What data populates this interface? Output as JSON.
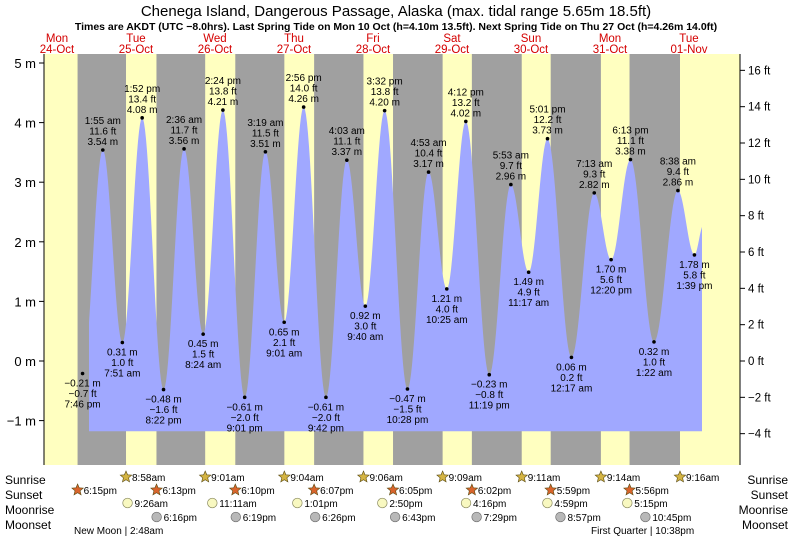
{
  "chart_data": {
    "type": "area",
    "title": "Chenega Island, Dangerous Passage, Alaska (max. tidal range 5.65m 18.5ft)",
    "subtitle": "Times are AKDT (UTC −8.0hrs). Last Spring Tide on Mon 10 Oct (h=4.10m 13.5ft). Next Spring Tide on Thu 27 Oct (h=4.26m 14.0ft)",
    "ylim_m": [
      -1.2,
      5.0
    ],
    "y_ticks_m": [
      {
        "v": 5,
        "label": "5 m"
      },
      {
        "v": 4,
        "label": "4 m"
      },
      {
        "v": 3,
        "label": "3 m"
      },
      {
        "v": 2,
        "label": "2 m"
      },
      {
        "v": 1,
        "label": "1 m"
      },
      {
        "v": 0,
        "label": "0 m"
      },
      {
        "v": -1,
        "label": "−1 m"
      }
    ],
    "y_ticks_ft": [
      {
        "v": 16,
        "label": "16 ft"
      },
      {
        "v": 14,
        "label": "14 ft"
      },
      {
        "v": 12,
        "label": "12 ft"
      },
      {
        "v": 10,
        "label": "10 ft"
      },
      {
        "v": 8,
        "label": "8 ft"
      },
      {
        "v": 6,
        "label": "6 ft"
      },
      {
        "v": 4,
        "label": "4 ft"
      },
      {
        "v": 2,
        "label": "2 ft"
      },
      {
        "v": 0,
        "label": "0 ft"
      },
      {
        "v": -2,
        "label": "−2 ft"
      },
      {
        "v": -4,
        "label": "−4 ft"
      }
    ],
    "days": [
      {
        "dow": "Mon",
        "date": "24-Oct"
      },
      {
        "dow": "Tue",
        "date": "25-Oct"
      },
      {
        "dow": "Wed",
        "date": "26-Oct"
      },
      {
        "dow": "Thu",
        "date": "27-Oct"
      },
      {
        "dow": "Fri",
        "date": "28-Oct"
      },
      {
        "dow": "Sat",
        "date": "29-Oct"
      },
      {
        "dow": "Sun",
        "date": "30-Oct"
      },
      {
        "dow": "Mon",
        "date": "31-Oct"
      },
      {
        "dow": "Tue",
        "date": "01-Nov"
      }
    ],
    "daylight_hours": [
      {
        "day": 0,
        "rise": null,
        "set": 18.25
      },
      {
        "day": 1,
        "rise": 8.967,
        "set": 18.217
      },
      {
        "day": 2,
        "rise": 9.017,
        "set": 18.167
      },
      {
        "day": 3,
        "rise": 9.067,
        "set": 18.117
      },
      {
        "day": 4,
        "rise": 9.1,
        "set": 18.083
      },
      {
        "day": 5,
        "rise": 9.15,
        "set": 18.033
      },
      {
        "day": 6,
        "rise": 9.183,
        "set": 17.983
      },
      {
        "day": 7,
        "rise": 9.233,
        "set": 17.933
      },
      {
        "day": 8,
        "rise": 9.267,
        "set": null
      }
    ],
    "tides": [
      {
        "day": 0,
        "hour": 19.767,
        "m": -0.21,
        "m_label": "−0.21 m",
        "ft_label": "−0.7 ft",
        "time": "7:46 pm",
        "type": "low"
      },
      {
        "day": 1,
        "hour": 1.917,
        "m": 3.54,
        "m_label": "3.54 m",
        "ft_label": "11.6 ft",
        "time": "1:55 am",
        "type": "high"
      },
      {
        "day": 1,
        "hour": 7.85,
        "m": 0.31,
        "m_label": "0.31 m",
        "ft_label": "1.0 ft",
        "time": "7:51 am",
        "type": "low"
      },
      {
        "day": 1,
        "hour": 13.867,
        "m": 4.08,
        "m_label": "4.08 m",
        "ft_label": "13.4 ft",
        "time": "1:52 pm",
        "type": "high"
      },
      {
        "day": 1,
        "hour": 20.367,
        "m": -0.48,
        "m_label": "−0.48 m",
        "ft_label": "−1.6 ft",
        "time": "8:22 pm",
        "type": "low"
      },
      {
        "day": 2,
        "hour": 2.6,
        "m": 3.56,
        "m_label": "3.56 m",
        "ft_label": "11.7 ft",
        "time": "2:36 am",
        "type": "high"
      },
      {
        "day": 2,
        "hour": 8.4,
        "m": 0.45,
        "m_label": "0.45 m",
        "ft_label": "1.5 ft",
        "time": "8:24 am",
        "type": "low"
      },
      {
        "day": 2,
        "hour": 14.4,
        "m": 4.21,
        "m_label": "4.21 m",
        "ft_label": "13.8 ft",
        "time": "2:24 pm",
        "type": "high"
      },
      {
        "day": 2,
        "hour": 21.017,
        "m": -0.61,
        "m_label": "−0.61 m",
        "ft_label": "−2.0 ft",
        "time": "9:01 pm",
        "type": "low"
      },
      {
        "day": 3,
        "hour": 3.317,
        "m": 3.51,
        "m_label": "3.51 m",
        "ft_label": "11.5 ft",
        "time": "3:19 am",
        "type": "high"
      },
      {
        "day": 3,
        "hour": 9.017,
        "m": 0.65,
        "m_label": "0.65 m",
        "ft_label": "2.1 ft",
        "time": "9:01 am",
        "type": "low"
      },
      {
        "day": 3,
        "hour": 14.933,
        "m": 4.26,
        "m_label": "4.26 m",
        "ft_label": "14.0 ft",
        "time": "2:56 pm",
        "type": "high"
      },
      {
        "day": 3,
        "hour": 21.7,
        "m": -0.61,
        "m_label": "−0.61 m",
        "ft_label": "−2.0 ft",
        "time": "9:42 pm",
        "type": "low"
      },
      {
        "day": 4,
        "hour": 4.05,
        "m": 3.37,
        "m_label": "3.37 m",
        "ft_label": "11.1 ft",
        "time": "4:03 am",
        "type": "high"
      },
      {
        "day": 4,
        "hour": 9.667,
        "m": 0.92,
        "m_label": "0.92 m",
        "ft_label": "3.0 ft",
        "time": "9:40 am",
        "type": "low"
      },
      {
        "day": 4,
        "hour": 15.533,
        "m": 4.2,
        "m_label": "4.20 m",
        "ft_label": "13.8 ft",
        "time": "3:32 pm",
        "type": "high"
      },
      {
        "day": 4,
        "hour": 22.467,
        "m": -0.47,
        "m_label": "−0.47 m",
        "ft_label": "−1.5 ft",
        "time": "10:28 pm",
        "type": "low"
      },
      {
        "day": 5,
        "hour": 4.883,
        "m": 3.17,
        "m_label": "3.17 m",
        "ft_label": "10.4 ft",
        "time": "4:53 am",
        "type": "high"
      },
      {
        "day": 5,
        "hour": 10.417,
        "m": 1.21,
        "m_label": "1.21 m",
        "ft_label": "4.0 ft",
        "time": "10:25 am",
        "type": "low"
      },
      {
        "day": 5,
        "hour": 16.2,
        "m": 4.02,
        "m_label": "4.02 m",
        "ft_label": "13.2 ft",
        "time": "4:12 pm",
        "type": "high"
      },
      {
        "day": 5,
        "hour": 23.317,
        "m": -0.23,
        "m_label": "−0.23 m",
        "ft_label": "−0.8 ft",
        "time": "11:19 pm",
        "type": "low"
      },
      {
        "day": 6,
        "hour": 5.883,
        "m": 2.96,
        "m_label": "2.96 m",
        "ft_label": "9.7 ft",
        "time": "5:53 am",
        "type": "high"
      },
      {
        "day": 6,
        "hour": 11.283,
        "m": 1.49,
        "m_label": "1.49 m",
        "ft_label": "4.9 ft",
        "time": "11:17 am",
        "type": "low"
      },
      {
        "day": 6,
        "hour": 17.017,
        "m": 3.73,
        "m_label": "3.73 m",
        "ft_label": "12.2 ft",
        "time": "5:01 pm",
        "type": "high"
      },
      {
        "day": 7,
        "hour": 0.283,
        "m": 0.06,
        "m_label": "0.06 m",
        "ft_label": "0.2 ft",
        "time": "12:17 am",
        "type": "low"
      },
      {
        "day": 7,
        "hour": 7.217,
        "m": 2.82,
        "m_label": "2.82 m",
        "ft_label": "9.3 ft",
        "time": "7:13 am",
        "type": "high"
      },
      {
        "day": 7,
        "hour": 12.333,
        "m": 1.7,
        "m_label": "1.70 m",
        "ft_label": "5.6 ft",
        "time": "12:20 pm",
        "type": "low"
      },
      {
        "day": 7,
        "hour": 18.217,
        "m": 3.38,
        "m_label": "3.38 m",
        "ft_label": "11.1 ft",
        "time": "6:13 pm",
        "type": "high"
      },
      {
        "day": 8,
        "hour": 1.367,
        "m": 0.32,
        "m_label": "0.32 m",
        "ft_label": "1.0 ft",
        "time": "1:22 am",
        "type": "low"
      },
      {
        "day": 8,
        "hour": 8.633,
        "m": 2.86,
        "m_label": "2.86 m",
        "ft_label": "9.4 ft",
        "time": "8:38 am",
        "type": "high"
      },
      {
        "day": 8,
        "hour": 13.65,
        "m": 1.78,
        "m_label": "1.78 m",
        "ft_label": "5.8 ft",
        "time": "1:39 pm",
        "type": "low"
      }
    ]
  },
  "table": {
    "row_labels": {
      "sunrise": "Sunrise",
      "sunset": "Sunset",
      "moonrise": "Moonrise",
      "moonset": "Moonset"
    },
    "sunrise": [
      null,
      "8:58am",
      "9:01am",
      "9:04am",
      "9:06am",
      "9:09am",
      "9:11am",
      "9:14am",
      "9:16am"
    ],
    "sunset": [
      "6:15pm",
      "6:13pm",
      "6:10pm",
      "6:07pm",
      "6:05pm",
      "6:02pm",
      "5:59pm",
      "5:56pm",
      null
    ],
    "moonrise": [
      null,
      "9:26am",
      "11:11am",
      "1:01pm",
      "2:50pm",
      "4:16pm",
      "4:59pm",
      "5:15pm",
      null
    ],
    "moonset": [
      null,
      "6:16pm",
      "6:19pm",
      "6:26pm",
      "6:43pm",
      "7:29pm",
      "8:57pm",
      "10:45pm",
      null
    ],
    "moon_phase_new": "New Moon | 2:48am",
    "moon_phase_quarter": "First Quarter | 10:38pm"
  },
  "colors": {
    "night": "#a0a0a0",
    "day": "#ffffc0",
    "water": "#a0a8ff",
    "day_label": "#d40000",
    "sun_star": "#d4b443",
    "sunset_star": "#d9642c",
    "moon": "#f8f8c0",
    "moonset": "#b8b8b8"
  }
}
